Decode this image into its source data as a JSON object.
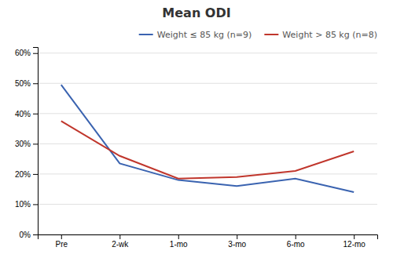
{
  "chart_data": {
    "type": "line",
    "title": "Mean ODI",
    "categories": [
      "Pre",
      "2-wk",
      "1-mo",
      "3-mo",
      "6-mo",
      "12-mo"
    ],
    "series": [
      {
        "name": "Weight ≤ 85 kg (n=9)",
        "color": "#3A63B0",
        "values": [
          49.5,
          23.5,
          18.0,
          16.0,
          18.5,
          14.0
        ]
      },
      {
        "name": "Weight > 85 kg (n=8)",
        "color": "#C0362C",
        "values": [
          37.5,
          26.0,
          18.5,
          19.0,
          21.0,
          27.5
        ]
      }
    ],
    "ylim": [
      0,
      62
    ],
    "yticks": [
      {
        "value": 0,
        "label": "0%"
      },
      {
        "value": 10,
        "label": "10%"
      },
      {
        "value": 20,
        "label": "20%"
      },
      {
        "value": 30,
        "label": "30%"
      },
      {
        "value": 40,
        "label": "40%"
      },
      {
        "value": 50,
        "label": "50%"
      },
      {
        "value": 60,
        "label": "60%"
      }
    ],
    "grid": true,
    "legend": "upper right"
  }
}
